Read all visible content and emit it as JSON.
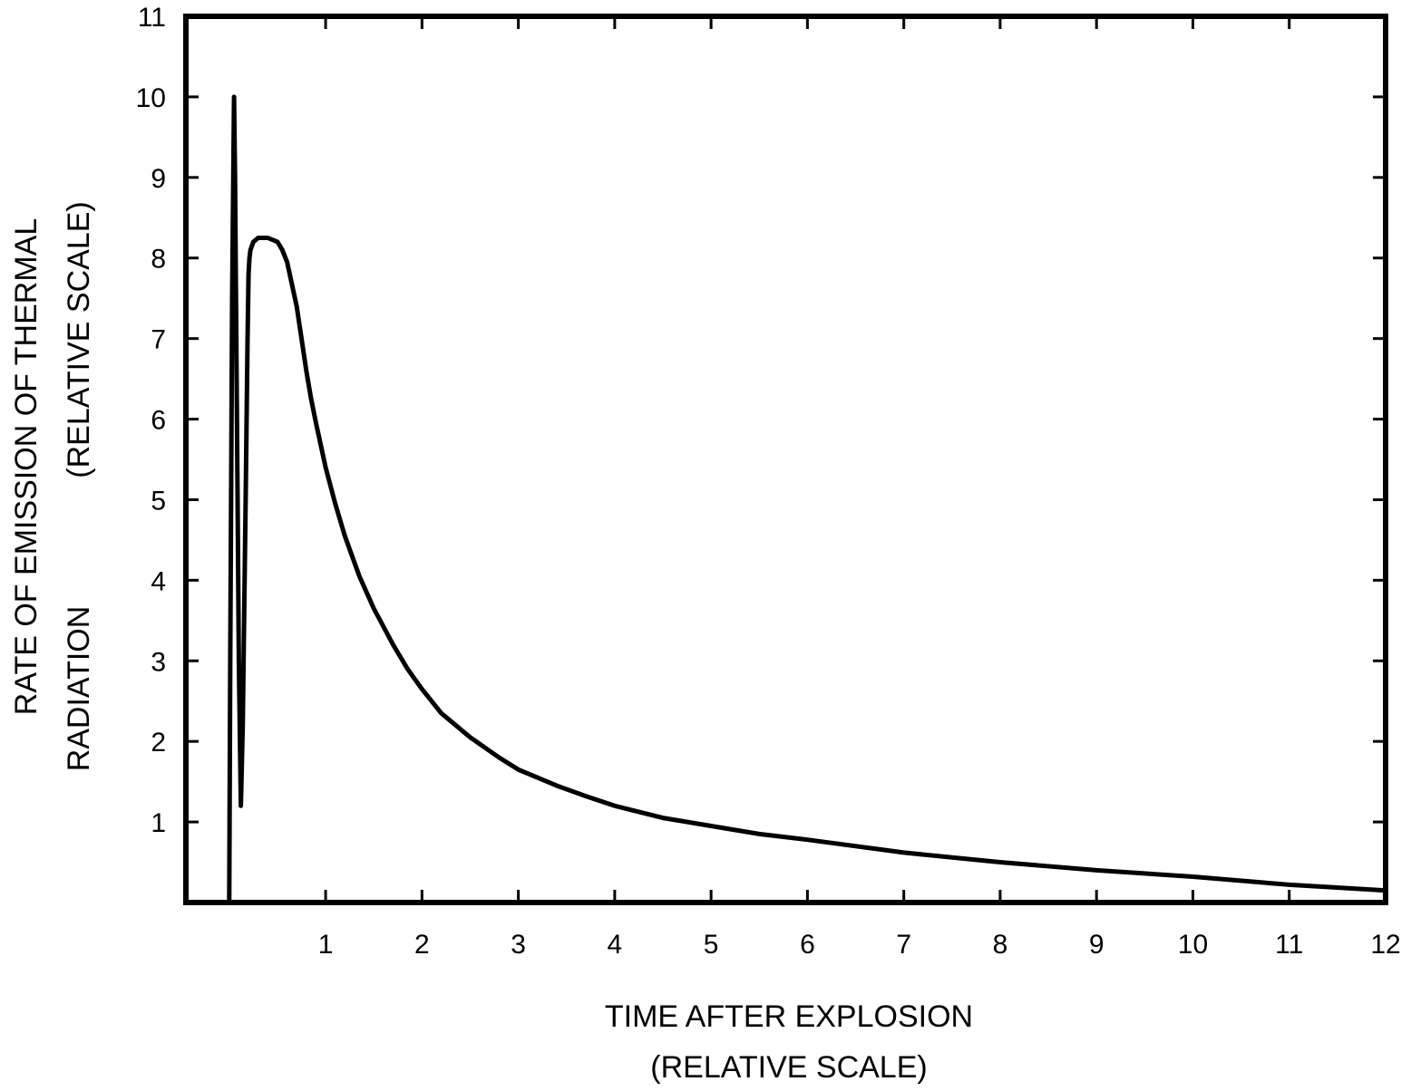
{
  "chart_data": {
    "type": "line",
    "title": "",
    "xlabel": [
      "TIME AFTER EXPLOSION",
      "(RELATIVE SCALE)"
    ],
    "ylabel": [
      "RATE OF EMISSION OF THERMAL",
      "RADIATION",
      "(RELATIVE SCALE)"
    ],
    "xlim": [
      -0.45,
      12
    ],
    "ylim": [
      0,
      11
    ],
    "x_ticks": [
      1,
      2,
      3,
      4,
      5,
      6,
      7,
      8,
      9,
      10,
      11,
      12
    ],
    "x_tick_labels": [
      "1",
      "2",
      "3",
      "4",
      "5",
      "6",
      "7",
      "8",
      "9",
      "10",
      "11",
      "12"
    ],
    "y_ticks": [
      1,
      2,
      3,
      4,
      5,
      6,
      7,
      8,
      9,
      10,
      11
    ],
    "y_tick_labels": [
      "1",
      "2",
      "3",
      "4",
      "5",
      "6",
      "7",
      "8",
      "9",
      "10",
      "11"
    ],
    "grid": false,
    "legend": "none",
    "colors": {
      "line": "#000000",
      "frame": "#000000",
      "background": "#ffffff"
    },
    "series": [
      {
        "x": [
          0.0,
          0.01,
          0.03,
          0.05,
          0.06,
          0.08,
          0.1,
          0.12,
          0.14,
          0.17,
          0.19,
          0.2,
          0.21,
          0.22,
          0.25,
          0.3,
          0.4,
          0.5,
          0.55,
          0.6,
          0.7,
          0.75,
          0.8,
          0.85,
          0.9,
          1.0,
          1.1,
          1.2,
          1.35,
          1.5,
          1.7,
          1.85,
          2.0,
          2.2,
          2.5,
          2.8,
          3.0,
          3.4,
          3.7,
          4.0,
          4.5,
          5.0,
          5.5,
          6.0,
          7.0,
          8.0,
          9.0,
          10.0,
          11.0,
          12.0
        ],
        "y": [
          0.0,
          3.0,
          7.5,
          10.0,
          9.0,
          6.0,
          3.0,
          1.2,
          2.2,
          5.0,
          7.0,
          7.8,
          8.0,
          8.1,
          8.2,
          8.25,
          8.25,
          8.2,
          8.1,
          7.95,
          7.4,
          7.0,
          6.6,
          6.25,
          5.95,
          5.4,
          4.95,
          4.55,
          4.05,
          3.65,
          3.2,
          2.9,
          2.65,
          2.35,
          2.05,
          1.8,
          1.65,
          1.45,
          1.32,
          1.2,
          1.05,
          0.95,
          0.85,
          0.78,
          0.62,
          0.5,
          0.4,
          0.32,
          0.22,
          0.15
        ]
      }
    ]
  }
}
